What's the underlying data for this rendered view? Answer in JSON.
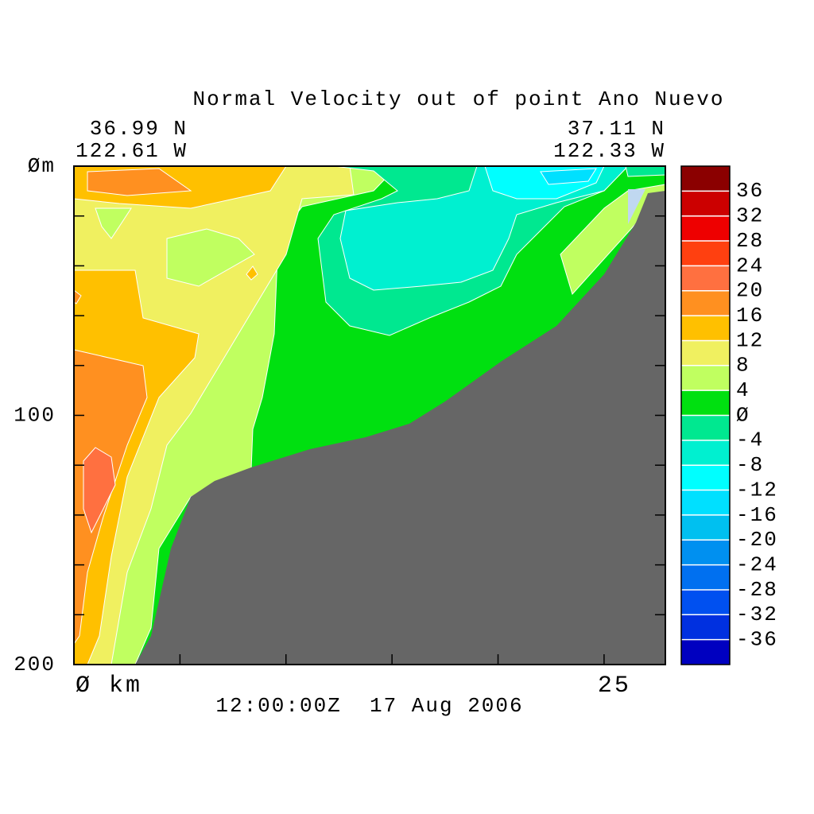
{
  "chart_data": {
    "type": "contour",
    "title": "Normal Velocity out of point Ano Nuevo",
    "left_position": {
      "lat": "36.99 N",
      "lon": "122.61 W"
    },
    "right_position": {
      "lat": "37.11 N",
      "lon": "122.33 W"
    },
    "time": "12:00:00Z  17 Aug 2006",
    "xlim": [
      0,
      27.89
    ],
    "xticks": [
      {
        "value": 0,
        "label": "Ø km"
      },
      25
    ],
    "xminorticks": [
      5,
      10,
      15,
      20
    ],
    "ylim": [
      0,
      200
    ],
    "y_reversed": true,
    "yticks": [
      {
        "value": 0,
        "label": "Øm"
      },
      100,
      200
    ],
    "yminorticks": [
      20,
      40,
      60,
      80,
      120,
      140,
      160,
      180
    ],
    "colorbar": {
      "clim": [
        -40,
        40
      ],
      "ticks": [
        -36,
        -32,
        -28,
        -24,
        -20,
        -16,
        -12,
        -8,
        -4,
        {
          "value": 0,
          "label": "Ø"
        },
        4,
        8,
        12,
        16,
        20,
        24,
        28,
        32,
        36
      ],
      "colors": [
        "#0000c0",
        "#0030e0",
        "#0050f0",
        "#0070f0",
        "#0090f0",
        "#00c0f0",
        "#00e0ff",
        "#00ffff",
        "#00f0d0",
        "#00e890",
        "#00e010",
        "#c0ff60",
        "#f0f060",
        "#ffc000",
        "#ff9020",
        "#ff7040",
        "#ff4010",
        "#ee0000",
        "#cc0000",
        "#8b0000"
      ]
    }
  }
}
